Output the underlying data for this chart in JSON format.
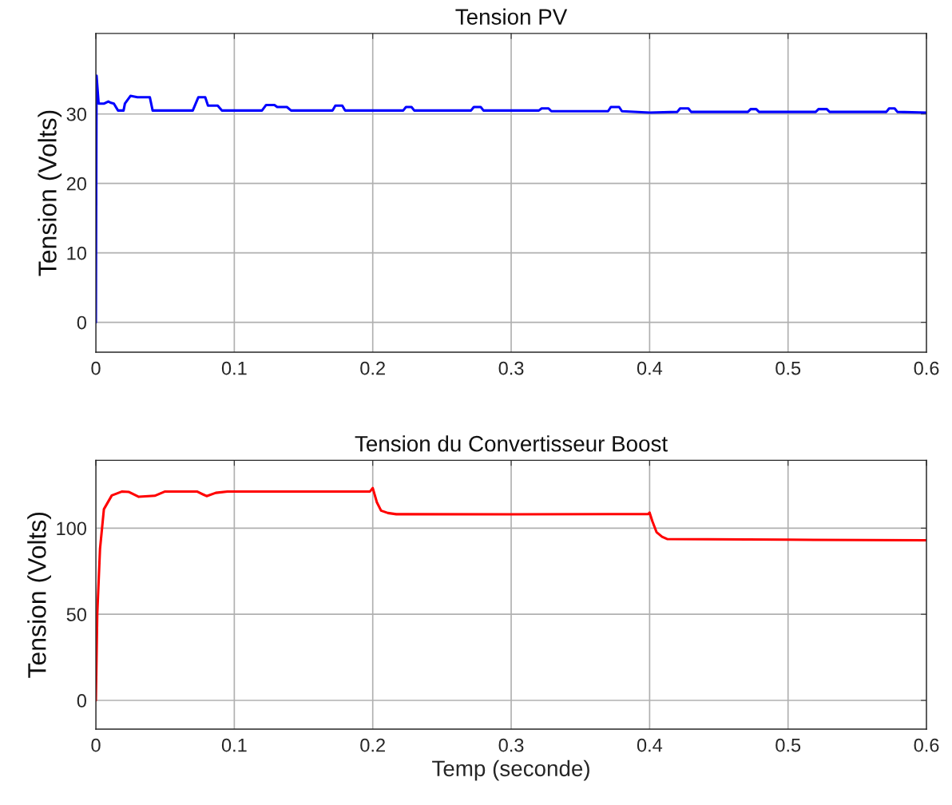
{
  "chart_data": [
    {
      "type": "line",
      "title": "Tension PV",
      "ylabel": "Tension (Volts)",
      "xlim": [
        0,
        0.6
      ],
      "ylim": [
        -4.3,
        41.6
      ],
      "xticks": [
        0,
        0.1,
        0.2,
        0.3,
        0.4,
        0.5,
        0.6
      ],
      "yticks": [
        0,
        10,
        20,
        30
      ],
      "grid": true,
      "legend": false,
      "line_style": "solid",
      "marker": "none",
      "series": [
        {
          "color": "#0000ff",
          "x": [
            0,
            0.0005,
            0.002,
            0.006,
            0.009,
            0.011,
            0.013,
            0.016,
            0.02,
            0.021,
            0.025,
            0.03,
            0.039,
            0.041,
            0.07,
            0.074,
            0.079,
            0.081,
            0.088,
            0.091,
            0.12,
            0.123,
            0.129,
            0.131,
            0.138,
            0.141,
            0.171,
            0.173,
            0.178,
            0.18,
            0.222,
            0.224,
            0.228,
            0.23,
            0.271,
            0.273,
            0.278,
            0.28,
            0.32,
            0.322,
            0.327,
            0.329,
            0.37,
            0.372,
            0.378,
            0.38,
            0.4,
            0.42,
            0.422,
            0.428,
            0.43,
            0.471,
            0.473,
            0.477,
            0.479,
            0.52,
            0.522,
            0.528,
            0.53,
            0.571,
            0.573,
            0.577,
            0.579,
            0.6
          ],
          "values": [
            0,
            35.5,
            31.5,
            31.5,
            31.8,
            31.6,
            31.5,
            30.5,
            30.5,
            31.5,
            32.6,
            32.4,
            32.4,
            30.5,
            30.5,
            32.4,
            32.4,
            31.2,
            31.2,
            30.5,
            30.5,
            31.3,
            31.3,
            31.0,
            31.0,
            30.5,
            30.5,
            31.2,
            31.2,
            30.5,
            30.5,
            31.0,
            31.0,
            30.5,
            30.5,
            31.0,
            31.0,
            30.5,
            30.5,
            30.8,
            30.8,
            30.4,
            30.4,
            31.0,
            31.0,
            30.4,
            30.2,
            30.3,
            30.8,
            30.8,
            30.3,
            30.3,
            30.7,
            30.7,
            30.3,
            30.3,
            30.7,
            30.7,
            30.3,
            30.3,
            30.8,
            30.8,
            30.3,
            30.2
          ]
        }
      ]
    },
    {
      "type": "line",
      "title": "Tension du Convertisseur Boost",
      "xlabel": "Temp (seconde)",
      "ylabel": "Tension (Volts)",
      "xlim": [
        0,
        0.6
      ],
      "ylim": [
        -16.7,
        139.4
      ],
      "xticks": [
        0,
        0.1,
        0.2,
        0.3,
        0.4,
        0.5,
        0.6
      ],
      "yticks": [
        0,
        50,
        100
      ],
      "grid": true,
      "legend": false,
      "line_style": "solid",
      "marker": "none",
      "series": [
        {
          "color": "#ff0000",
          "x": [
            0,
            0.001,
            0.003,
            0.0058,
            0.0115,
            0.019,
            0.024,
            0.031,
            0.0425,
            0.05,
            0.073,
            0.08,
            0.0866,
            0.095,
            0.198,
            0.2,
            0.203,
            0.206,
            0.211,
            0.217,
            0.3,
            0.399,
            0.4,
            0.402,
            0.405,
            0.409,
            0.4126,
            0.5,
            0.6
          ],
          "values": [
            0,
            50,
            88,
            111,
            119,
            121.3,
            121,
            118.2,
            118.8,
            121.3,
            121.3,
            118.6,
            120.5,
            121.3,
            121.3,
            123.3,
            115,
            110.2,
            108.8,
            108.1,
            108,
            108.2,
            109,
            104,
            97.7,
            95,
            93.7,
            93.3,
            93
          ]
        }
      ]
    }
  ]
}
